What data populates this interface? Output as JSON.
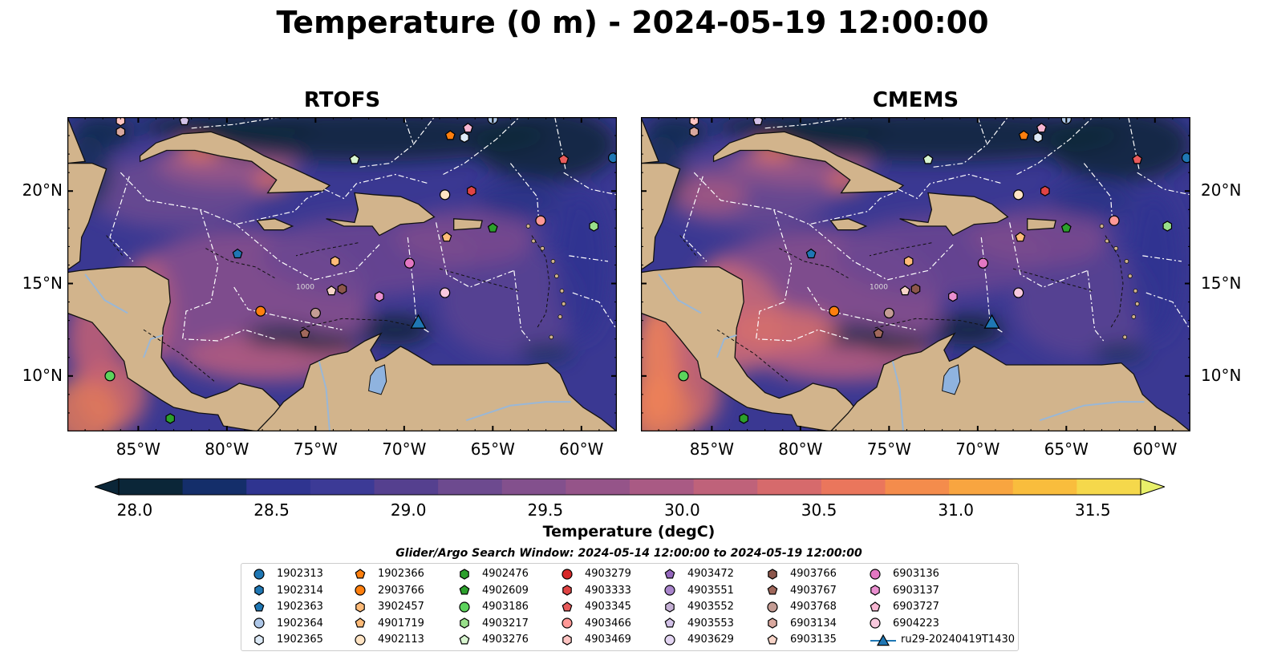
{
  "title": "Temperature (0 m) - 2024-05-19 12:00:00",
  "panels": [
    {
      "title": "RTOFS"
    },
    {
      "title": "CMEMS"
    }
  ],
  "map": {
    "lon_range": [
      -89,
      -58
    ],
    "lat_range": [
      7,
      24
    ],
    "lon_ticks": [
      "85°W",
      "80°W",
      "75°W",
      "70°W",
      "65°W",
      "60°W"
    ],
    "lat_ticks": [
      "20°N",
      "15°N",
      "10°N"
    ],
    "contour_label": "1000",
    "colors": {
      "land": "#d2b48c",
      "ocean_deep": "#0b2638",
      "ocean_mid": "#3d3a8c",
      "ocean_warm": "#7a4f8f",
      "lake": "#8fb3df"
    }
  },
  "colorbar": {
    "label": "Temperature (degC)",
    "ticks": [
      "28.0",
      "28.5",
      "29.0",
      "29.5",
      "30.0",
      "30.5",
      "31.0",
      "31.5"
    ],
    "range": [
      28.0,
      31.5
    ],
    "colors": [
      "#0b2638",
      "#142e6a",
      "#2f3490",
      "#3c3a96",
      "#55408f",
      "#6d4a8f",
      "#83508d",
      "#955489",
      "#a95a84",
      "#bf627a",
      "#d66a6c",
      "#ea765c",
      "#f48c4c",
      "#f8a540",
      "#f9bd3d",
      "#f5d84b",
      "#e8f06a"
    ]
  },
  "legend": {
    "title": "Glider/Argo Search Window: 2024-05-14 12:00:00 to 2024-05-19 12:00:00",
    "entries": [
      {
        "label": "1902313",
        "marker": "circle",
        "color": "#1f77b4"
      },
      {
        "label": "1902314",
        "marker": "hexagon",
        "color": "#1f77b4"
      },
      {
        "label": "1902363",
        "marker": "pentagon",
        "color": "#1f77b4"
      },
      {
        "label": "1902364",
        "marker": "circle",
        "color": "#aec7e8"
      },
      {
        "label": "1902365",
        "marker": "hexagon",
        "color": "#ddeaf7"
      },
      {
        "label": "1902366",
        "marker": "pentagon",
        "color": "#ff7f0e"
      },
      {
        "label": "2903766",
        "marker": "circle",
        "color": "#ff7f0e"
      },
      {
        "label": "3902457",
        "marker": "hexagon",
        "color": "#ffbb78"
      },
      {
        "label": "4901719",
        "marker": "pentagon",
        "color": "#ffbb78"
      },
      {
        "label": "4902113",
        "marker": "circle",
        "color": "#ffe4c4"
      },
      {
        "label": "4902476",
        "marker": "hexagon",
        "color": "#2ca02c"
      },
      {
        "label": "4902609",
        "marker": "pentagon",
        "color": "#2ca02c"
      },
      {
        "label": "4903186",
        "marker": "circle",
        "color": "#5cd35c"
      },
      {
        "label": "4903217",
        "marker": "hexagon",
        "color": "#98df8a"
      },
      {
        "label": "4903276",
        "marker": "pentagon",
        "color": "#d8f5d0"
      },
      {
        "label": "4903279",
        "marker": "circle",
        "color": "#d62728"
      },
      {
        "label": "4903333",
        "marker": "hexagon",
        "color": "#e04444"
      },
      {
        "label": "4903345",
        "marker": "pentagon",
        "color": "#e85b5b"
      },
      {
        "label": "4903466",
        "marker": "circle",
        "color": "#ff9896"
      },
      {
        "label": "4903469",
        "marker": "hexagon",
        "color": "#ffc4c2"
      },
      {
        "label": "4903472",
        "marker": "pentagon",
        "color": "#9467bd"
      },
      {
        "label": "4903551",
        "marker": "circle",
        "color": "#a985cc"
      },
      {
        "label": "4903552",
        "marker": "hexagon",
        "color": "#c5b0d5"
      },
      {
        "label": "4903553",
        "marker": "pentagon",
        "color": "#d3c2e8"
      },
      {
        "label": "4903629",
        "marker": "circle",
        "color": "#e3d5f2"
      },
      {
        "label": "4903766",
        "marker": "hexagon",
        "color": "#8c564b"
      },
      {
        "label": "4903767",
        "marker": "pentagon",
        "color": "#a0685c"
      },
      {
        "label": "4903768",
        "marker": "circle",
        "color": "#c49c94"
      },
      {
        "label": "6903134",
        "marker": "hexagon",
        "color": "#d9a89e"
      },
      {
        "label": "6903135",
        "marker": "pentagon",
        "color": "#f7d4c8"
      },
      {
        "label": "6903136",
        "marker": "circle",
        "color": "#e377c2"
      },
      {
        "label": "6903137",
        "marker": "hexagon",
        "color": "#ea8fd0"
      },
      {
        "label": "6903727",
        "marker": "pentagon",
        "color": "#f7b6d2"
      },
      {
        "label": "6904223",
        "marker": "circle",
        "color": "#f9c9de"
      },
      {
        "label": "ru29-20240419T1430",
        "marker": "triangle",
        "color": "#1f77b4"
      }
    ]
  },
  "platform_positions": [
    {
      "id": "1902313",
      "lon": -58.2,
      "lat": 21.8
    },
    {
      "id": "1902364",
      "lon": -65.0,
      "lat": 23.9
    },
    {
      "id": "1902365",
      "lon": -66.6,
      "lat": 22.9
    },
    {
      "id": "1902366",
      "lon": -67.4,
      "lat": 23.0
    },
    {
      "id": "6903727",
      "lon": -66.4,
      "lat": 23.4
    },
    {
      "id": "4903345",
      "lon": -61.0,
      "lat": 21.7
    },
    {
      "id": "4903276",
      "lon": -72.8,
      "lat": 21.7
    },
    {
      "id": "4902113",
      "lon": -67.7,
      "lat": 19.8
    },
    {
      "id": "4903333",
      "lon": -66.2,
      "lat": 20.0
    },
    {
      "id": "4903466",
      "lon": -62.3,
      "lat": 18.4
    },
    {
      "id": "4902609",
      "lon": -65.0,
      "lat": 18.0
    },
    {
      "id": "4903217",
      "lon": -59.3,
      "lat": 18.1
    },
    {
      "id": "4901719",
      "lon": -67.6,
      "lat": 17.5
    },
    {
      "id": "1902363",
      "lon": -79.4,
      "lat": 16.6
    },
    {
      "id": "3902457",
      "lon": -73.9,
      "lat": 16.2
    },
    {
      "id": "6903136",
      "lon": -69.7,
      "lat": 16.1
    },
    {
      "id": "6903135",
      "lon": -74.1,
      "lat": 14.6
    },
    {
      "id": "4903766",
      "lon": -73.5,
      "lat": 14.7
    },
    {
      "id": "6904223",
      "lon": -67.7,
      "lat": 14.5
    },
    {
      "id": "6903137",
      "lon": -71.4,
      "lat": 14.3
    },
    {
      "id": "2903766",
      "lon": -78.1,
      "lat": 13.5
    },
    {
      "id": "4903768",
      "lon": -75.0,
      "lat": 13.4
    },
    {
      "id": "4903767",
      "lon": -75.6,
      "lat": 12.3
    },
    {
      "id": "4903186",
      "lon": -86.6,
      "lat": 10.0
    },
    {
      "id": "4902476",
      "lon": -83.2,
      "lat": 7.7
    },
    {
      "id": "4903469",
      "lon": -86.0,
      "lat": 23.8
    },
    {
      "id": "6903134",
      "lon": -86.0,
      "lat": 23.2
    },
    {
      "id": "4903553",
      "lon": -82.4,
      "lat": 23.8
    },
    {
      "id": "ru29-20240419T1430",
      "lon": -69.2,
      "lat": 12.9
    }
  ]
}
